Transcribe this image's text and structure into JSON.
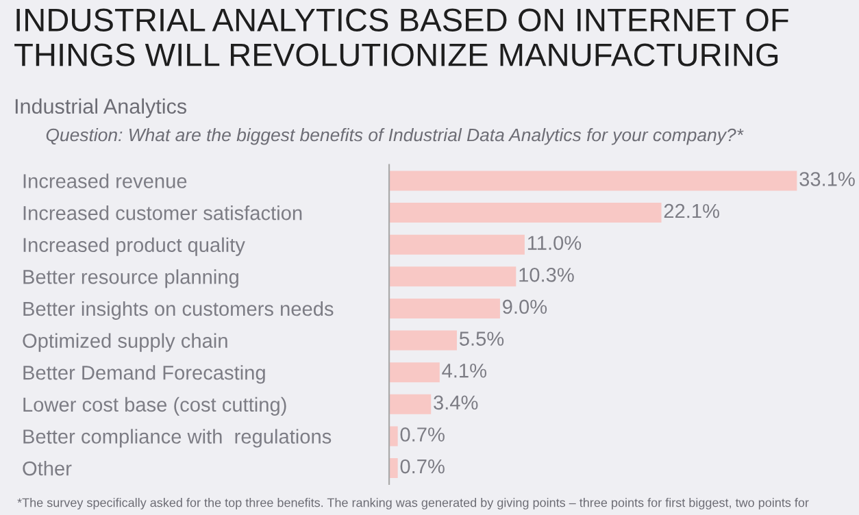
{
  "chart_data": {
    "type": "bar",
    "orientation": "horizontal",
    "title": "INDUSTRIAL ANALYTICS BASED ON INTERNET OF THINGS WILL REVOLUTIONIZE MANUFACTURING",
    "subtitle": "Industrial Analytics",
    "annotations": [
      "Question: What are the biggest benefits of Industrial Data Analytics for your company?*",
      "*The survey specifically asked for the top three benefits. The ranking was generated by giving points – three points for first biggest, two points for"
    ],
    "categories": [
      "Increased revenue",
      "Increased customer satisfaction",
      "Increased product quality",
      "Better resource planning",
      "Better insights on customers needs",
      "Optimized supply chain",
      "Better Demand Forecasting",
      "Lower cost base (cost cutting)",
      "Better compliance with  regulations",
      "Other"
    ],
    "values": [
      33.1,
      22.1,
      11.0,
      10.3,
      9.0,
      5.5,
      4.1,
      3.4,
      0.7,
      0.7
    ],
    "value_labels": [
      "33.1%",
      "22.1%",
      "11.0%",
      "10.3%",
      "9.0%",
      "5.5%",
      "4.1%",
      "3.4%",
      "0.7%",
      "0.7%"
    ],
    "color": "#f8c8c5",
    "xlim": [
      0,
      38
    ],
    "tick_labels": "y",
    "grid": false,
    "legend": false
  }
}
